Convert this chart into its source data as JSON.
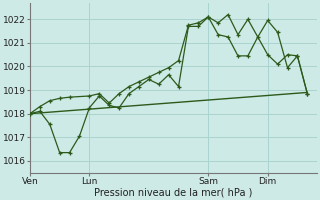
{
  "xlabel": "Pression niveau de la mer( hPa )",
  "ylim": [
    1015.5,
    1022.7
  ],
  "yticks": [
    1016,
    1017,
    1018,
    1019,
    1020,
    1021,
    1022
  ],
  "background_color": "#cdeae6",
  "grid_color": "#aad4cf",
  "line_color": "#2d5a1b",
  "day_labels": [
    "Ven",
    "Lun",
    "Sam",
    "Dim"
  ],
  "day_positions": [
    0,
    3,
    9,
    12
  ],
  "xmin": 0,
  "xmax": 14.5,
  "series1_x": [
    0,
    0.5,
    1.0,
    1.5,
    2.0,
    3.0,
    3.5,
    4.0,
    4.5,
    5.0,
    5.5,
    6.0,
    6.5,
    7.0,
    7.5,
    8.0,
    8.5,
    9.0,
    9.5,
    10.0,
    10.5,
    11.0,
    12.0,
    12.5,
    13.0,
    13.5,
    14.0
  ],
  "series1_y": [
    1018.0,
    1018.3,
    1018.55,
    1018.65,
    1018.7,
    1018.75,
    1018.85,
    1018.45,
    1018.85,
    1019.15,
    1019.35,
    1019.55,
    1019.75,
    1019.95,
    1020.25,
    1021.75,
    1021.85,
    1022.1,
    1021.85,
    1022.2,
    1021.35,
    1022.0,
    1020.5,
    1020.1,
    1020.5,
    1020.45,
    1018.85
  ],
  "series2_x": [
    0,
    0.5,
    1.0,
    1.5,
    2.0,
    2.5,
    3.0,
    3.5,
    4.0,
    4.5,
    5.0,
    5.5,
    6.0,
    6.5,
    7.0,
    7.5,
    8.0,
    8.5,
    9.0,
    9.5,
    10.0,
    10.5,
    11.0,
    11.5,
    12.0,
    12.5,
    13.0,
    13.5,
    14.0
  ],
  "series2_y": [
    1018.0,
    1018.1,
    1017.55,
    1016.35,
    1016.35,
    1017.05,
    1018.25,
    1018.75,
    1018.35,
    1018.25,
    1018.85,
    1019.15,
    1019.45,
    1019.25,
    1019.65,
    1019.15,
    1021.7,
    1021.7,
    1022.1,
    1021.35,
    1021.25,
    1020.45,
    1020.45,
    1021.25,
    1021.95,
    1021.45,
    1019.95,
    1020.45,
    1018.85
  ],
  "series3_x": [
    0,
    14.0
  ],
  "series3_y": [
    1018.0,
    1018.9
  ]
}
